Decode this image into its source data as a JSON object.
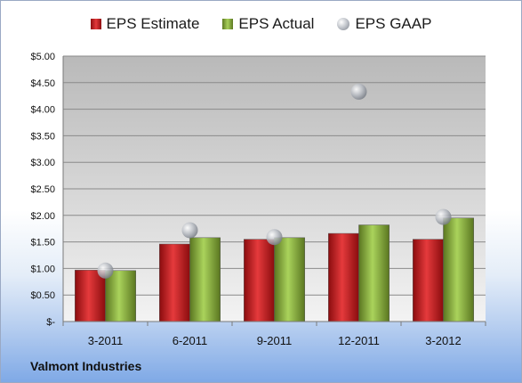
{
  "chart_data": {
    "type": "bar",
    "categories": [
      "3-2011",
      "6-2011",
      "9-2011",
      "12-2011",
      "3-2012"
    ],
    "series": [
      {
        "name": "EPS Estimate",
        "kind": "bar",
        "color": "#c8191c",
        "values": [
          0.97,
          1.46,
          1.55,
          1.66,
          1.55
        ]
      },
      {
        "name": "EPS Actual",
        "kind": "bar",
        "color": "#8cb43c",
        "values": [
          0.96,
          1.58,
          1.58,
          1.82,
          1.95
        ]
      },
      {
        "name": "EPS GAAP",
        "kind": "marker",
        "color": "#b4b8bf",
        "values": [
          0.96,
          1.72,
          1.59,
          4.33,
          1.97
        ]
      }
    ],
    "ylim": [
      0,
      5
    ],
    "yticks": [
      0,
      0.5,
      1.0,
      1.5,
      2.0,
      2.5,
      3.0,
      3.5,
      4.0,
      4.5,
      5.0
    ],
    "ytick_labels": [
      "$-",
      "$0.50",
      "$1.00",
      "$1.50",
      "$2.00",
      "$2.50",
      "$3.00",
      "$3.50",
      "$4.00",
      "$4.50",
      "$5.00"
    ],
    "grid": true,
    "legend_position": "top-center",
    "footnote": "Valmont Industries"
  }
}
